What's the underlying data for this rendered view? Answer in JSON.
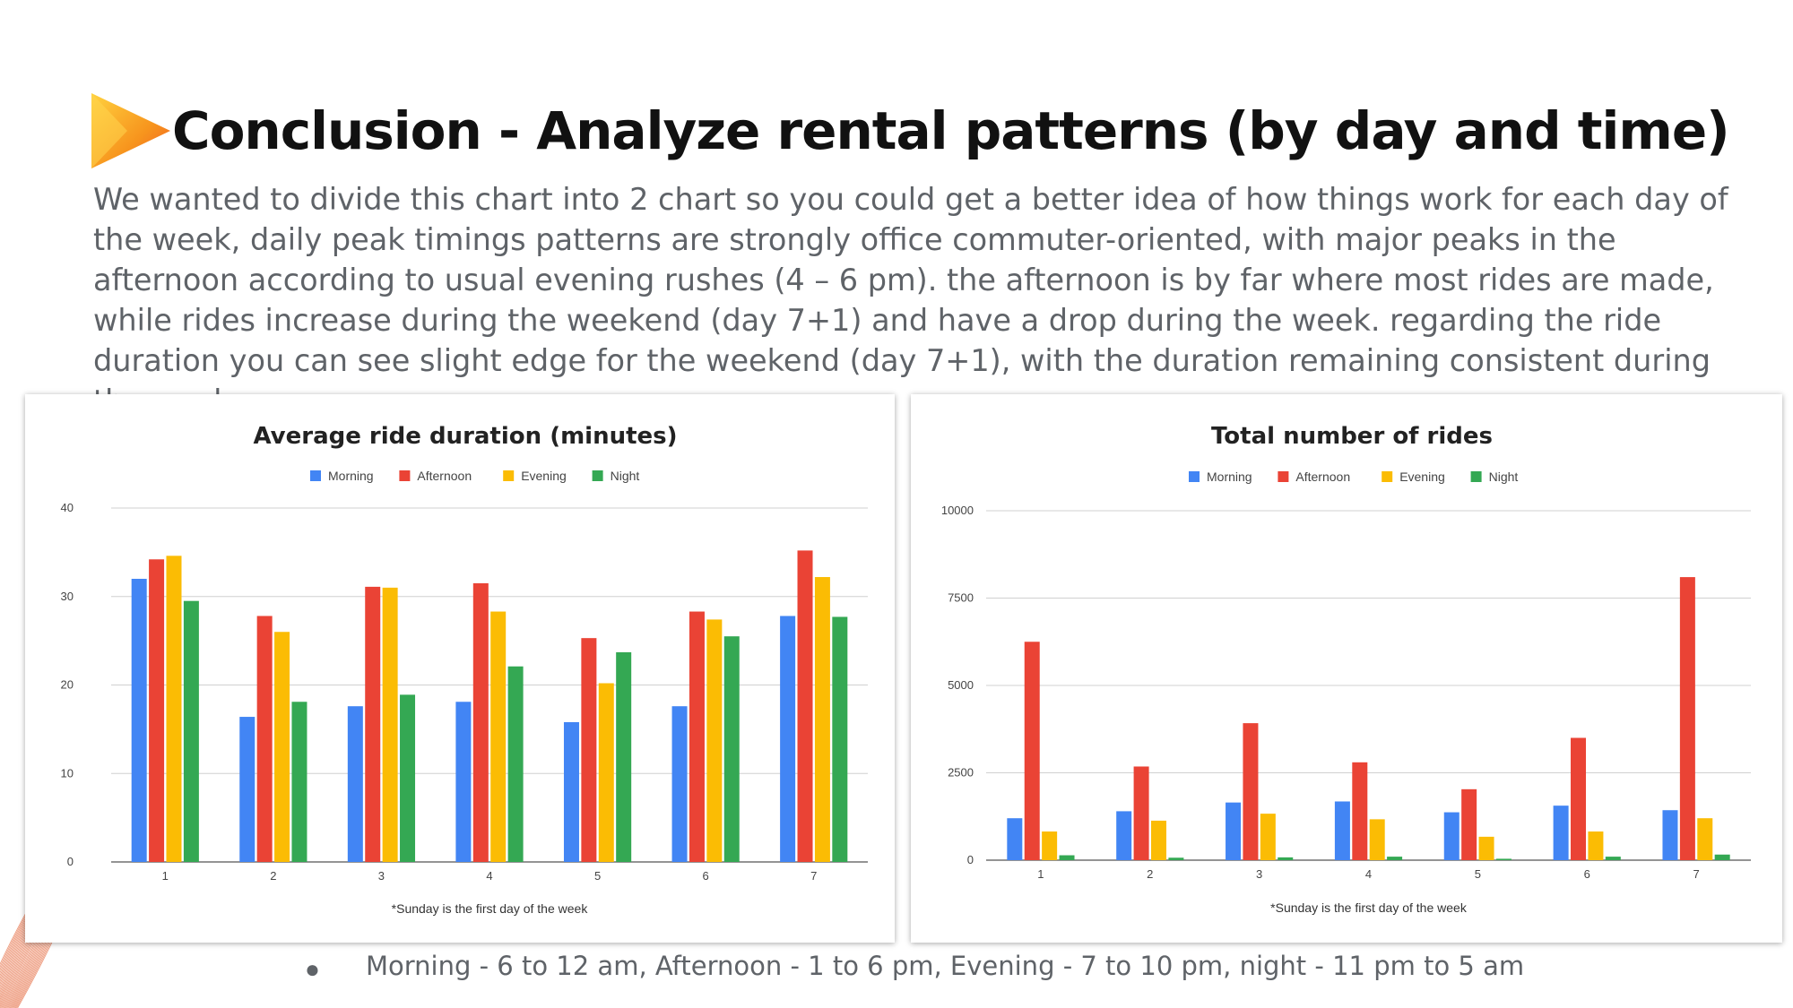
{
  "header": {
    "title": "Conclusion - Analyze rental patterns (by day and time)",
    "description": "We wanted to divide this chart into 2 chart so you could get a better idea of how things work for each day of the week, daily peak timings patterns are strongly office commuter-oriented, with major peaks in the afternoon according to usual evening rushes (4 – 6 pm). the afternoon is by far where most rides are made, while rides increase during the weekend (day 7+1) and have a drop during the week. regarding the ride duration you can see slight edge for the weekend (day 7+1), with the duration remaining consistent during the week."
  },
  "footnote": "Morning - 6 to 12 am, Afternoon - 1 to 6 pm, Evening - 7 to 10 pm, night - 11 pm to 5 am",
  "colors": {
    "morning": "#4285f4",
    "afternoon": "#ea4335",
    "evening": "#fbbc04",
    "night": "#34a853",
    "logo_start": "#ffcf33",
    "logo_end": "#f05a24"
  },
  "icons": {
    "logo": "play-arrow-logo",
    "decoration": "orange-wave-lines"
  },
  "chart_data": [
    {
      "type": "bar",
      "title": "Average ride duration (minutes)",
      "categories": [
        "1",
        "2",
        "3",
        "4",
        "5",
        "6",
        "7"
      ],
      "series": [
        {
          "name": "Morning",
          "values": [
            32,
            16.4,
            17.6,
            18.1,
            15.8,
            17.6,
            27.8
          ]
        },
        {
          "name": "Afternoon",
          "values": [
            34.2,
            27.8,
            31.1,
            31.5,
            25.3,
            28.3,
            35.2
          ]
        },
        {
          "name": "Evening",
          "values": [
            34.6,
            26,
            31,
            28.3,
            20.2,
            27.4,
            32.2
          ]
        },
        {
          "name": "Night",
          "values": [
            29.5,
            18.1,
            18.9,
            22.1,
            23.7,
            25.5,
            27.7
          ]
        }
      ],
      "yticks": [
        0,
        10,
        20,
        30,
        40
      ],
      "ylim": [
        0,
        40
      ],
      "note": "*Sunday is the first day of the week",
      "legend": "top",
      "grid": true
    },
    {
      "type": "bar",
      "title": "Total number of rides",
      "categories": [
        "1",
        "2",
        "3",
        "4",
        "5",
        "6",
        "7"
      ],
      "series": [
        {
          "name": "Morning",
          "values": [
            1200,
            1400,
            1650,
            1680,
            1370,
            1560,
            1430
          ]
        },
        {
          "name": "Afternoon",
          "values": [
            6250,
            2680,
            3920,
            2800,
            2030,
            3500,
            8100
          ]
        },
        {
          "name": "Evening",
          "values": [
            820,
            1130,
            1330,
            1170,
            670,
            820,
            1200
          ]
        },
        {
          "name": "Night",
          "values": [
            140,
            70,
            80,
            100,
            40,
            100,
            160
          ]
        }
      ],
      "yticks": [
        0,
        2500,
        5000,
        7500,
        10000
      ],
      "ylim": [
        0,
        10000
      ],
      "note": "*Sunday is the first day of the week",
      "legend": "top",
      "grid": true
    }
  ]
}
